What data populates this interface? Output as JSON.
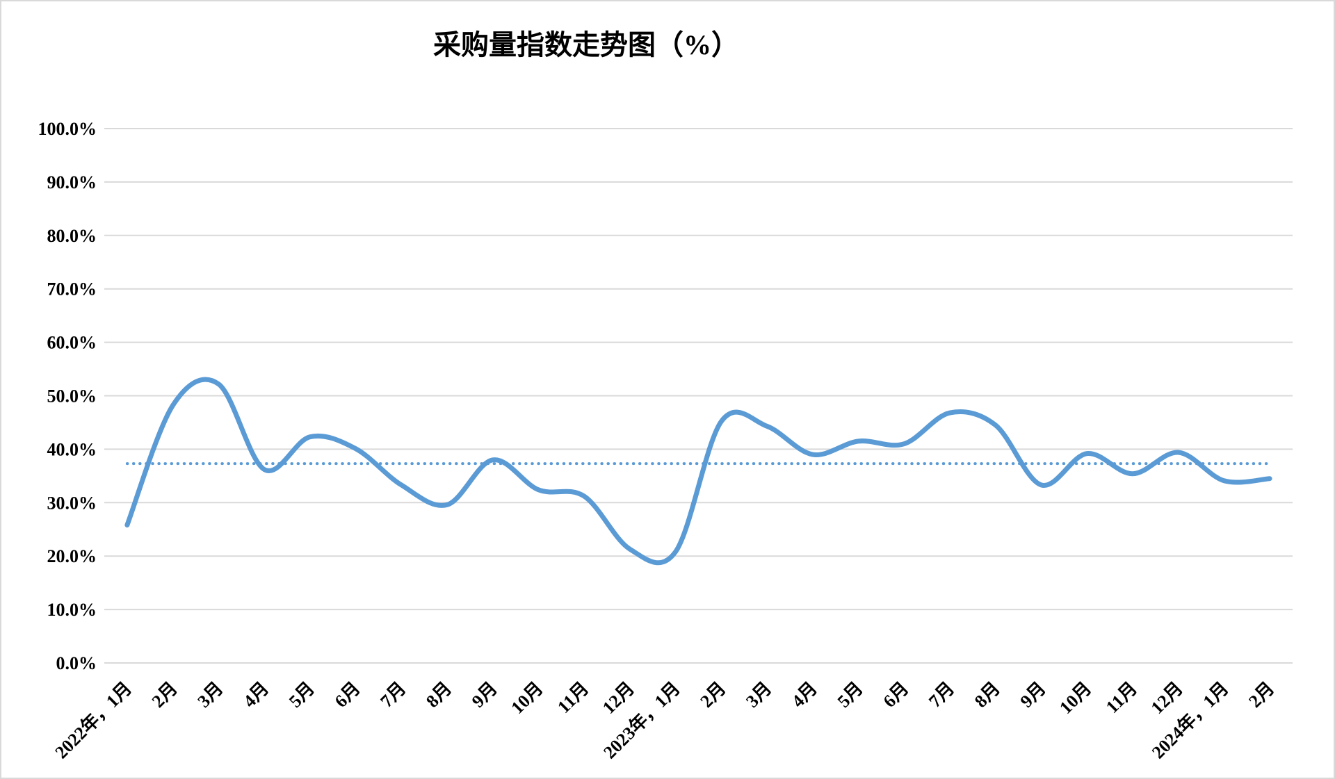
{
  "chart_data": {
    "type": "line",
    "title": "采购量指数走势图（%）",
    "categories": [
      "2022年，1月",
      "2月",
      "3月",
      "4月",
      "5月",
      "6月",
      "7月",
      "8月",
      "9月",
      "10月",
      "11月",
      "12月",
      "2023年，1月",
      "2月",
      "3月",
      "4月",
      "5月",
      "6月",
      "7月",
      "8月",
      "9月",
      "10月",
      "11月",
      "12月",
      "2024年，1月",
      "2月"
    ],
    "series": [
      {
        "name": "采购量指数",
        "style": "solid-smooth",
        "color": "#5B9BD5",
        "values": [
          25.8,
          48.2,
          52.2,
          36.2,
          42.3,
          40.1,
          33.3,
          29.6,
          38.0,
          32.4,
          31.2,
          21.3,
          20.8,
          45.2,
          44.3,
          39.0,
          41.5,
          41.0,
          46.8,
          44.5,
          33.3,
          39.2,
          35.4,
          39.4,
          34.1,
          34.5
        ]
      }
    ],
    "reference_line": {
      "style": "dotted",
      "color": "#5B9BD5",
      "value": 37.3
    },
    "ylim": [
      0,
      100
    ],
    "y_ticks": [
      0,
      10,
      20,
      30,
      40,
      50,
      60,
      70,
      80,
      90,
      100
    ],
    "y_tick_labels": [
      "0.0%",
      "10.0%",
      "20.0%",
      "30.0%",
      "40.0%",
      "50.0%",
      "60.0%",
      "70.0%",
      "80.0%",
      "90.0%",
      "100.0%"
    ],
    "grid": "horizontal",
    "gridline_color": "#D9D9D9",
    "legend": "none",
    "text_color": "#000000"
  }
}
